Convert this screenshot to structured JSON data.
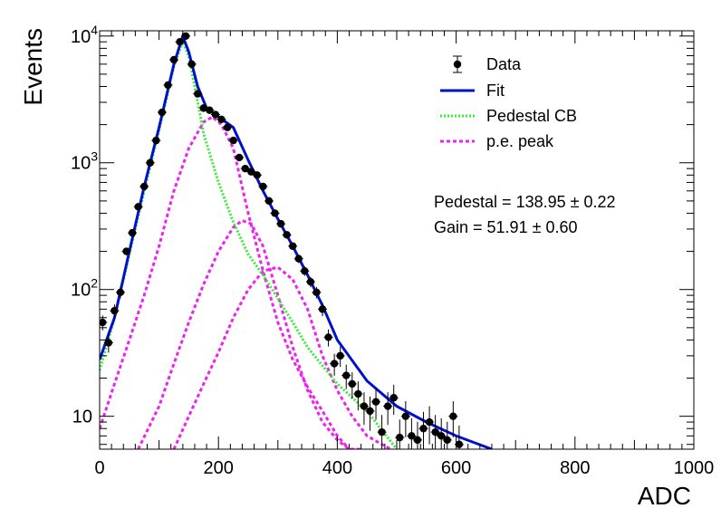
{
  "chart_data": {
    "type": "scatter",
    "xlabel": "ADC",
    "ylabel": "Events",
    "xlim": [
      0,
      1000
    ],
    "ylim": [
      5.5,
      11000
    ],
    "yscale": "log",
    "x_ticks": [
      "0",
      "200",
      "400",
      "600",
      "800",
      "1000"
    ],
    "y_ticks": [
      "10",
      "10²",
      "10³",
      "10⁴"
    ],
    "legend_position": "top-right",
    "legend": [
      {
        "label": "Data",
        "style": "marker",
        "color": "#000000"
      },
      {
        "label": "Fit",
        "style": "solid",
        "color": "#0011cc"
      },
      {
        "label": "Pedestal CB",
        "style": "dotted",
        "color": "#33ee33"
      },
      {
        "label": "p.e. peak",
        "style": "dashed",
        "color": "#ee22ee"
      }
    ],
    "annotations": [
      "Pedestal = 138.95 ± 0.22",
      "Gain = 51.91 ± 0.60"
    ],
    "series": [
      {
        "name": "Data",
        "color": "#000000",
        "x": [
          5,
          15,
          25,
          35,
          45,
          55,
          65,
          75,
          85,
          95,
          105,
          115,
          125,
          135,
          145,
          155,
          165,
          175,
          185,
          195,
          205,
          215,
          225,
          235,
          245,
          255,
          265,
          275,
          285,
          295,
          305,
          315,
          325,
          335,
          345,
          355,
          365,
          375,
          385,
          395,
          405,
          415,
          425,
          435,
          445,
          455,
          465,
          475,
          485,
          495,
          505,
          515,
          525,
          535,
          545,
          555,
          565,
          575,
          585,
          595,
          605
        ],
        "y": [
          55,
          38,
          68,
          95,
          200,
          280,
          450,
          650,
          1000,
          1500,
          2500,
          4100,
          6500,
          9000,
          10000,
          6000,
          3500,
          2700,
          2600,
          2400,
          2200,
          1900,
          1500,
          1100,
          900,
          850,
          800,
          650,
          500,
          400,
          330,
          270,
          220,
          175,
          140,
          115,
          95,
          70,
          42,
          26,
          30,
          21,
          18,
          15,
          12,
          11,
          13,
          7.5,
          12,
          14,
          6.8,
          10,
          7,
          6.5,
          8,
          9,
          7.5,
          7,
          6.5,
          10,
          6
        ]
      },
      {
        "name": "Fit",
        "color": "#0011cc",
        "x": [
          0,
          25,
          50,
          75,
          100,
          125,
          140,
          150,
          165,
          180,
          200,
          225,
          250,
          275,
          300,
          325,
          350,
          375,
          400,
          450,
          500,
          550,
          600,
          660
        ],
        "y": [
          28,
          60,
          200,
          650,
          1900,
          6000,
          10000,
          7500,
          4000,
          2700,
          2300,
          1900,
          1050,
          600,
          360,
          220,
          130,
          75,
          40,
          19,
          12,
          9,
          7,
          5.5
        ]
      },
      {
        "name": "Pedestal CB",
        "color": "#33ee33",
        "x": [
          0,
          25,
          50,
          75,
          100,
          125,
          140,
          150,
          160,
          175,
          200,
          225,
          250,
          275,
          300,
          325,
          350,
          400,
          450,
          500
        ],
        "y": [
          23,
          60,
          190,
          600,
          1800,
          5800,
          9000,
          7000,
          4000,
          1700,
          700,
          340,
          190,
          130,
          85,
          55,
          35,
          18,
          11,
          5.5
        ]
      },
      {
        "name": "p.e. peak 1",
        "color": "#ee22ee",
        "x": [
          0,
          25,
          50,
          75,
          100,
          125,
          150,
          175,
          190,
          205,
          225,
          250,
          275,
          300,
          325,
          350,
          375,
          400,
          420
        ],
        "y": [
          8,
          18,
          40,
          90,
          220,
          600,
          1300,
          2100,
          2300,
          2000,
          1300,
          400,
          140,
          55,
          28,
          17,
          11,
          7,
          5.5
        ]
      },
      {
        "name": "p.e. peak 2",
        "color": "#ee22ee",
        "x": [
          65,
          100,
          125,
          150,
          175,
          200,
          225,
          240,
          255,
          275,
          300,
          325,
          350,
          375,
          400,
          420,
          440
        ],
        "y": [
          5.5,
          12,
          26,
          55,
          110,
          200,
          310,
          350,
          330,
          220,
          90,
          35,
          16,
          9,
          6.5,
          5.5,
          5.5
        ]
      },
      {
        "name": "p.e. peak 3",
        "color": "#ee22ee",
        "x": [
          125,
          150,
          175,
          200,
          225,
          250,
          275,
          300,
          325,
          350,
          375,
          400,
          425,
          450,
          475,
          490
        ],
        "y": [
          5.5,
          10,
          18,
          32,
          60,
          100,
          140,
          150,
          120,
          70,
          30,
          16,
          10,
          7,
          6,
          5.5
        ]
      }
    ]
  }
}
